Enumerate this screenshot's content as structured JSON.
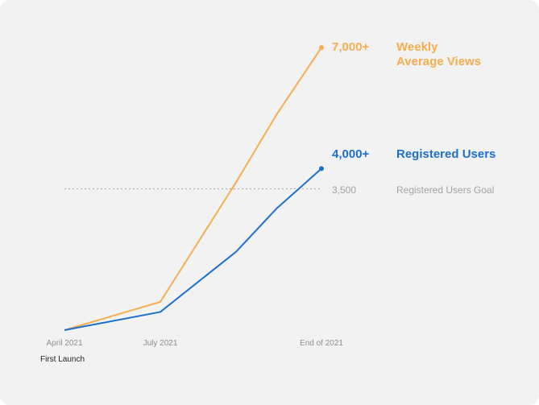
{
  "chart_data": {
    "type": "line",
    "x": [
      "April 2021",
      "July 2021",
      "End of 2021"
    ],
    "series": [
      {
        "name": "Weekly\nAverage Views",
        "end_value_label": "7,000+",
        "color": "#f6ac4f",
        "points": [
          {
            "x": "April 2021",
            "y": 0
          },
          {
            "x": "July 2021",
            "y": 700
          },
          {
            "x": "End of 2021",
            "y": 7000
          }
        ]
      },
      {
        "name": "Registered Users",
        "end_value_label": "4,000+",
        "color": "#1b6fd1",
        "points": [
          {
            "x": "April 2021",
            "y": 0
          },
          {
            "x": "July 2021",
            "y": 450
          },
          {
            "x": "End of 2021",
            "y": 4000
          }
        ]
      }
    ],
    "reference_line": {
      "label": "Registered Users Goal",
      "value": 3500,
      "value_label": "3,500",
      "color": "#b0b0b0",
      "style": "dotted"
    },
    "annotations": [
      {
        "text": "First Launch",
        "at": "April 2021"
      }
    ],
    "grid": false,
    "legend": "inline-right"
  }
}
